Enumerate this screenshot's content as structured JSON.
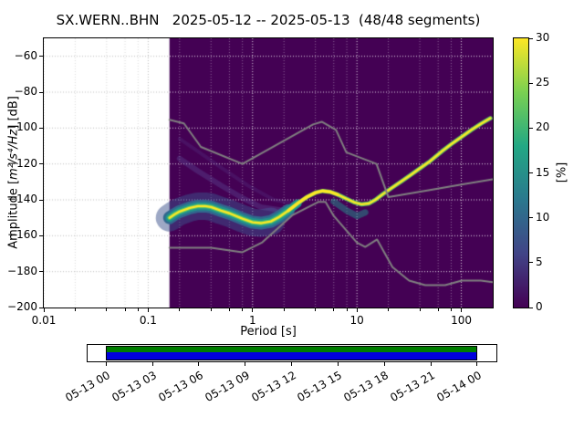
{
  "title": "SX.WERN..BHN   2025-05-12 -- 2025-05-13  (48/48 segments)",
  "y_axis": {
    "label_prefix": "Amplitude [",
    "label_math": "m²/s⁴/Hz",
    "label_suffix": "] [dB]",
    "ticks": [
      {
        "v": -60,
        "label": "−60"
      },
      {
        "v": -80,
        "label": "−80"
      },
      {
        "v": -100,
        "label": "−100"
      },
      {
        "v": -120,
        "label": "−120"
      },
      {
        "v": -140,
        "label": "−140"
      },
      {
        "v": -160,
        "label": "−160"
      },
      {
        "v": -180,
        "label": "−180"
      },
      {
        "v": -200,
        "label": "−200"
      }
    ]
  },
  "x_axis": {
    "label": "Period [s]",
    "ticks": [
      {
        "v": 0.01,
        "label": "0.01"
      },
      {
        "v": 0.1,
        "label": "0.1"
      },
      {
        "v": 1,
        "label": "1"
      },
      {
        "v": 10,
        "label": "10"
      },
      {
        "v": 100,
        "label": "100"
      }
    ],
    "minor_mantissas": [
      2,
      4,
      6,
      8
    ]
  },
  "colorbar": {
    "label": "[%]",
    "range": [
      0,
      30
    ],
    "ticks": [
      {
        "v": 0,
        "label": "0"
      },
      {
        "v": 5,
        "label": "5"
      },
      {
        "v": 10,
        "label": "10"
      },
      {
        "v": 15,
        "label": "15"
      },
      {
        "v": 20,
        "label": "20"
      },
      {
        "v": 25,
        "label": "25"
      },
      {
        "v": 30,
        "label": "30"
      }
    ],
    "gradient": [
      "#440154",
      "#414487",
      "#2a788e",
      "#22a884",
      "#7ad151",
      "#fde725"
    ]
  },
  "timeline": {
    "labels": [
      "05-13 00",
      "05-13 03",
      "05-13 06",
      "05-13 09",
      "05-13 12",
      "05-13 15",
      "05-13 18",
      "05-13 21",
      "05-14 00"
    ],
    "coverage_start_frac": 0.047,
    "coverage_end_frac": 0.951,
    "bands": [
      {
        "color": "#007d00",
        "height_frac": 0.44
      },
      {
        "color": "#0000dd",
        "height_frac": 0.56
      }
    ]
  },
  "chart_data": {
    "type": "heatmap",
    "title": "SX.WERN..BHN   2025-05-12 -- 2025-05-13  (48/48 segments)",
    "station": "SX.WERN..BHN",
    "date_range": "2025-05-12 -- 2025-05-13",
    "segments": "48/48",
    "xlabel": "Period [s]",
    "ylabel": "Amplitude [m²/s⁴/Hz] [dB]",
    "xscale": "log",
    "xlim": [
      0.01,
      200
    ],
    "ylim": [
      -200,
      -50
    ],
    "colormap": "viridis",
    "colorbar_label": "[%]",
    "colorbar_range": [
      0,
      30
    ],
    "background_value_color": "#440154",
    "data_period_range": [
      0.16,
      200
    ],
    "mode_curve": {
      "periods": [
        0.16,
        0.18,
        0.2,
        0.25,
        0.3,
        0.35,
        0.4,
        0.5,
        0.6,
        0.8,
        1.0,
        1.2,
        1.5,
        1.8,
        2.2,
        2.7,
        3.3,
        4.0,
        4.7,
        5.5,
        6.5,
        8.0,
        9.5,
        11,
        13,
        15,
        18,
        22,
        27,
        33,
        40,
        50,
        65,
        80,
        100,
        125,
        155,
        190
      ],
      "db": [
        -150,
        -148,
        -146.5,
        -144.5,
        -143.5,
        -143.5,
        -144,
        -146,
        -147.5,
        -150.5,
        -152.5,
        -153,
        -152,
        -149.5,
        -146,
        -142,
        -138.5,
        -136,
        -135,
        -135.5,
        -137,
        -139.5,
        -141.5,
        -142.5,
        -142,
        -140,
        -136.5,
        -133,
        -129.5,
        -126,
        -122.5,
        -118.5,
        -113,
        -109,
        -105,
        -101,
        -97.5,
        -94.5
      ]
    },
    "secondary_bands": [
      {
        "periods": [
          0.2,
          0.3,
          0.5,
          0.8,
          1.2,
          2.0
        ],
        "db": [
          -117,
          -124,
          -132,
          -139,
          -144,
          -146
        ]
      },
      {
        "periods": [
          0.2,
          0.3,
          0.5,
          0.9,
          1.6,
          2.6
        ],
        "db": [
          -106,
          -113,
          -122,
          -132,
          -140,
          -142
        ]
      },
      {
        "periods": [
          6,
          8,
          10,
          12
        ],
        "db": [
          -141,
          -146,
          -149,
          -147
        ]
      }
    ],
    "noise_models": {
      "color": "#808080",
      "high": {
        "periods": [
          0.16,
          0.22,
          0.32,
          0.8,
          3.8,
          4.6,
          6.3,
          7.9,
          15.4,
          20,
          50,
          100,
          200
        ],
        "db": [
          -95.4,
          -97.4,
          -110.5,
          -120.0,
          -98.0,
          -96.5,
          -101.0,
          -113.5,
          -120.0,
          -138.5,
          -134.5,
          -131.5,
          -128.5
        ]
      },
      "low": {
        "periods": [
          0.16,
          0.4,
          0.8,
          1.24,
          2.4,
          4.3,
          5.0,
          6.0,
          10,
          12,
          15.6,
          21.9,
          31.6,
          45,
          70,
          101,
          154,
          200
        ],
        "db": [
          -166.7,
          -166.7,
          -169.2,
          -163.7,
          -148.6,
          -141.1,
          -141.1,
          -149.0,
          -163.8,
          -166.2,
          -162.1,
          -177.5,
          -185.0,
          -187.5,
          -187.5,
          -185.0,
          -185.0,
          -185.9
        ]
      }
    }
  }
}
